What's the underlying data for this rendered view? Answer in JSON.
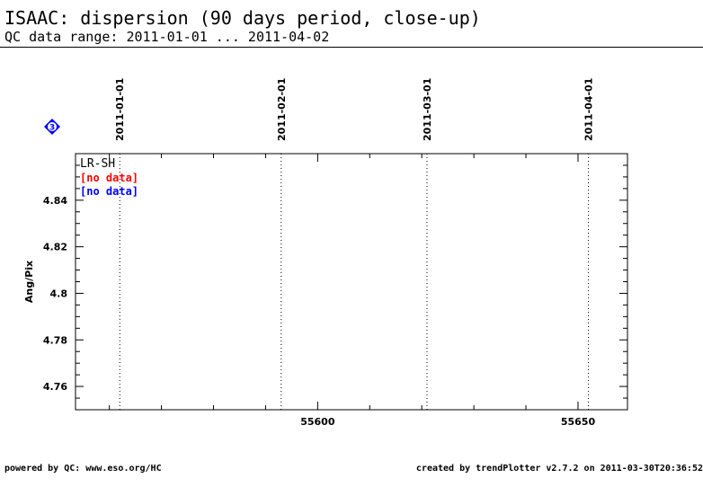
{
  "header": {
    "title": "ISAAC: dispersion (90 days period, close-up)",
    "subtitle": "QC data range: 2011-01-01 ... 2011-04-02"
  },
  "badge": {
    "label": "3",
    "color": "#0000ff"
  },
  "footer": {
    "left": "powered by QC: www.eso.org/HC",
    "right": "created by trendPlotter v2.7.2 on 2011-03-30T20:36:52"
  },
  "chart_data": {
    "type": "scatter",
    "title": "ISAAC: dispersion (90 days period, close-up)",
    "xlabel": "",
    "ylabel": "Ang/Pix",
    "xlim": [
      55553.5,
      55659.5
    ],
    "ylim": [
      4.75,
      4.86
    ],
    "xticks": [
      55600,
      55650
    ],
    "xtick_labels": [
      "55600",
      "55650"
    ],
    "xminor_step": 10,
    "yticks": [
      4.76,
      4.78,
      4.8,
      4.82,
      4.84
    ],
    "ytick_labels": [
      "4.76",
      "4.78",
      "4.8",
      "4.82",
      "4.84"
    ],
    "yminor_step": 0.005,
    "date_markers": [
      {
        "label": "2011-01-01",
        "x": 55562
      },
      {
        "label": "2011-02-01",
        "x": 55593
      },
      {
        "label": "2011-03-01",
        "x": 55621
      },
      {
        "label": "2011-04-01",
        "x": 55652
      }
    ],
    "legend": {
      "title": "LR-SH",
      "placement": "top-left",
      "entries": [
        {
          "text": "[no data]",
          "color": "#ff0000"
        },
        {
          "text": "[no data]",
          "color": "#0000ff"
        }
      ]
    },
    "series": []
  }
}
